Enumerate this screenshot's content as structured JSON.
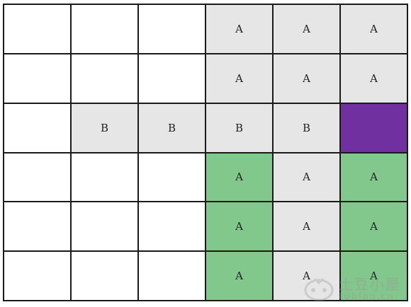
{
  "colors": {
    "white": "#ffffff",
    "gray": "#e6e6e6",
    "green": "#82c88c",
    "purple": "#7030a0"
  },
  "grid": {
    "rows": [
      [
        {
          "label": "",
          "color": "white"
        },
        {
          "label": "",
          "color": "white"
        },
        {
          "label": "",
          "color": "white"
        },
        {
          "label": "A",
          "color": "gray"
        },
        {
          "label": "A",
          "color": "gray"
        },
        {
          "label": "A",
          "color": "gray"
        }
      ],
      [
        {
          "label": "",
          "color": "white"
        },
        {
          "label": "",
          "color": "white"
        },
        {
          "label": "",
          "color": "white"
        },
        {
          "label": "A",
          "color": "gray"
        },
        {
          "label": "A",
          "color": "gray"
        },
        {
          "label": "A",
          "color": "gray"
        }
      ],
      [
        {
          "label": "",
          "color": "white"
        },
        {
          "label": "B",
          "color": "gray"
        },
        {
          "label": "B",
          "color": "gray"
        },
        {
          "label": "B",
          "color": "gray"
        },
        {
          "label": "B",
          "color": "gray"
        },
        {
          "label": "",
          "color": "purple"
        }
      ],
      [
        {
          "label": "",
          "color": "white"
        },
        {
          "label": "",
          "color": "white"
        },
        {
          "label": "",
          "color": "white"
        },
        {
          "label": "A",
          "color": "green"
        },
        {
          "label": "A",
          "color": "gray"
        },
        {
          "label": "A",
          "color": "green"
        }
      ],
      [
        {
          "label": "",
          "color": "white"
        },
        {
          "label": "",
          "color": "white"
        },
        {
          "label": "",
          "color": "white"
        },
        {
          "label": "A",
          "color": "green"
        },
        {
          "label": "A",
          "color": "gray"
        },
        {
          "label": "A",
          "color": "green"
        }
      ],
      [
        {
          "label": "",
          "color": "white"
        },
        {
          "label": "",
          "color": "white"
        },
        {
          "label": "",
          "color": "white"
        },
        {
          "label": "A",
          "color": "green"
        },
        {
          "label": "A",
          "color": "gray"
        },
        {
          "label": "A",
          "color": "green"
        }
      ]
    ]
  },
  "watermark": {
    "icon": "gamepad-icon",
    "title": "土豆小屋",
    "url": "tubiao.cn"
  }
}
